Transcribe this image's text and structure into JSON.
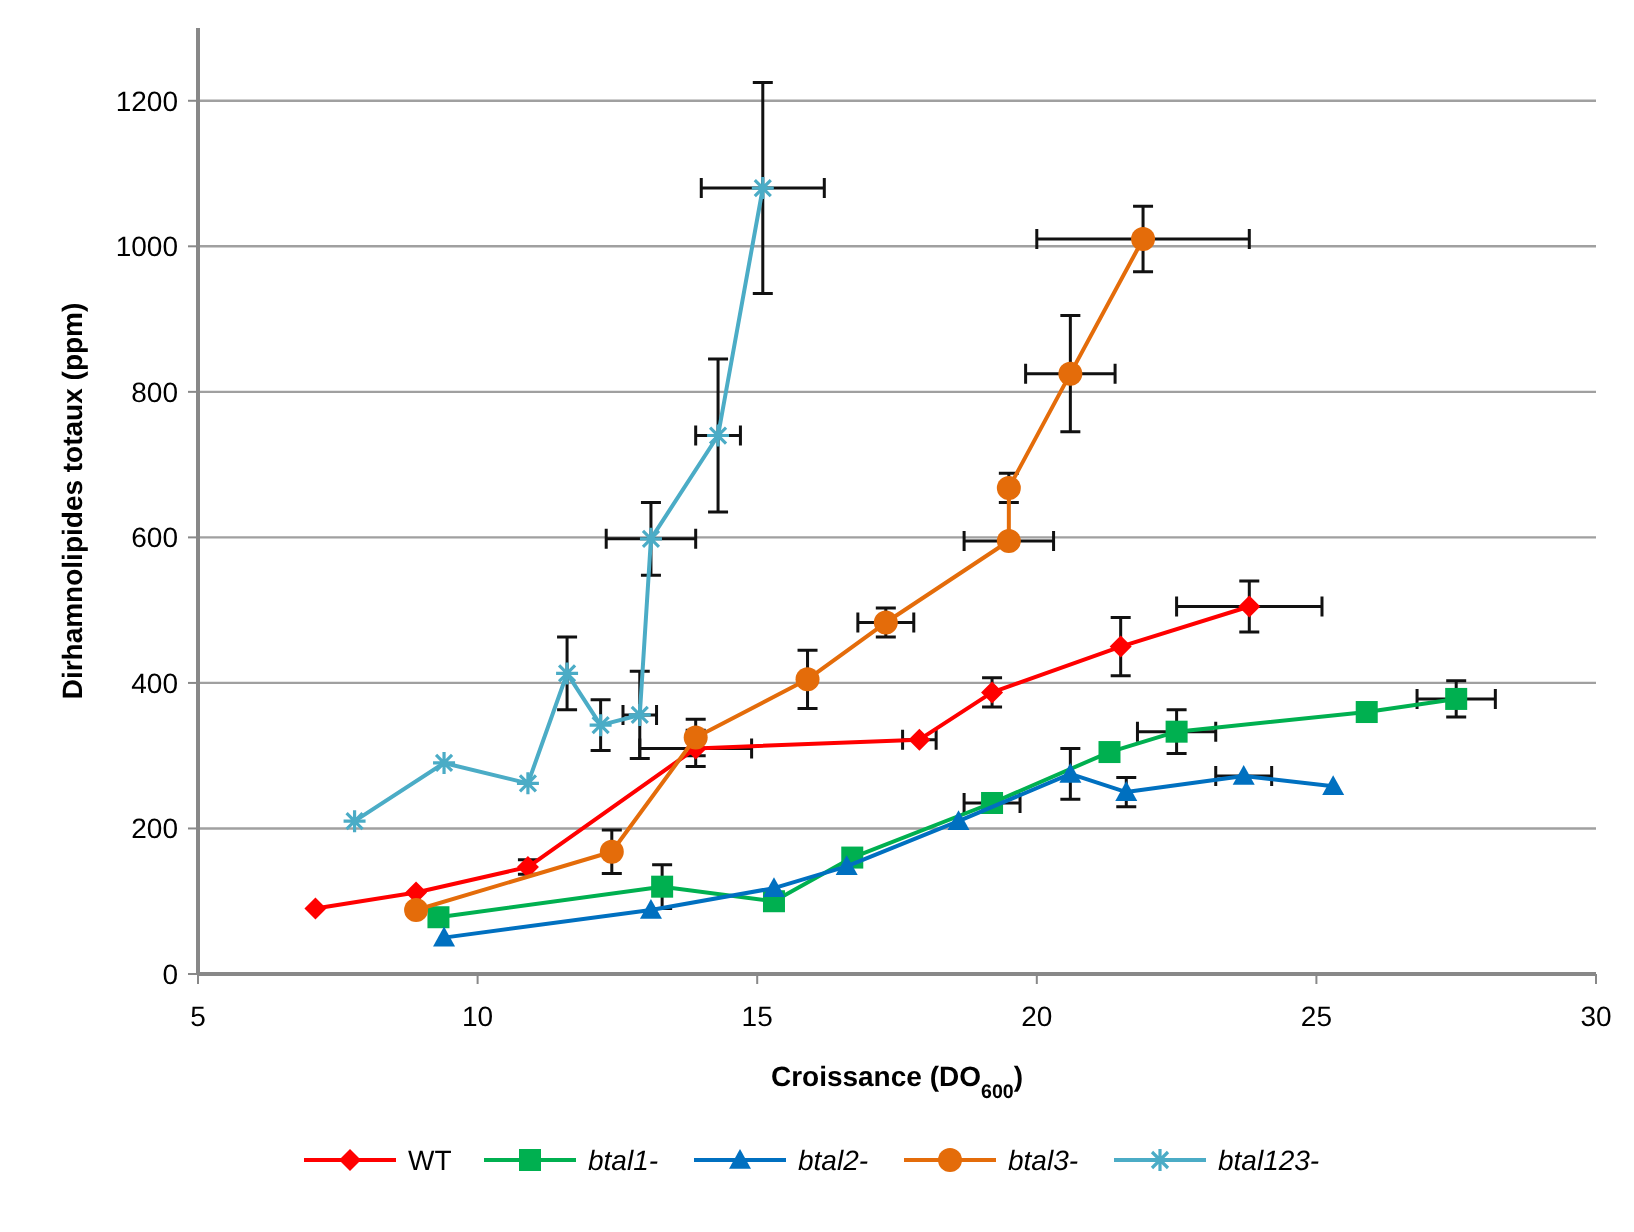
{
  "chart_data": {
    "type": "line",
    "xlabel": "Croissance (DO$_{600}$)",
    "ylabel": "Dirhamnolipides totaux (ppm)",
    "xlim": [
      5,
      30
    ],
    "xticks": [
      5,
      10,
      15,
      20,
      25,
      30
    ],
    "ylim": [
      0,
      1300
    ],
    "yticks": [
      0,
      200,
      400,
      600,
      800,
      1000,
      1200
    ],
    "grid": "y",
    "legend": "bottom",
    "series": [
      {
        "name": "WT",
        "color": "#ff0000",
        "marker": "diamond",
        "x": [
          7.1,
          8.9,
          10.9,
          13.9,
          17.9,
          19.2,
          21.5,
          23.8
        ],
        "values": [
          90,
          112,
          147,
          310,
          322,
          387,
          450,
          505
        ],
        "errors": [
          null,
          null,
          10,
          25,
          null,
          20,
          40,
          35
        ],
        "xerrors": [
          null,
          null,
          null,
          1,
          0.3,
          null,
          null,
          1.3
        ]
      },
      {
        "name": "btal1-",
        "color": "#00b050",
        "marker": "square",
        "x": [
          9.3,
          13.3,
          15.3,
          16.7,
          19.2,
          21.3,
          22.5,
          25.9,
          27.5
        ],
        "values": [
          78,
          120,
          100,
          160,
          235,
          305,
          333,
          360,
          378
        ],
        "errors": [
          null,
          30,
          null,
          null,
          null,
          null,
          30,
          null,
          25
        ],
        "xerrors": [
          null,
          null,
          null,
          null,
          0.5,
          null,
          0.7,
          null,
          0.7
        ]
      },
      {
        "name": "btal2-",
        "color": "#0070c0",
        "marker": "triangle",
        "x": [
          9.4,
          13.1,
          15.3,
          16.6,
          18.6,
          20.6,
          21.6,
          23.7,
          25.3
        ],
        "values": [
          50,
          88,
          118,
          148,
          210,
          275,
          250,
          272,
          258
        ],
        "errors": [
          null,
          null,
          null,
          null,
          null,
          35,
          20,
          null,
          null
        ],
        "xerrors": [
          null,
          null,
          null,
          null,
          null,
          null,
          null,
          0.5,
          null
        ]
      },
      {
        "name": "btal3-",
        "color": "#e46c0a",
        "marker": "circle",
        "x": [
          8.9,
          12.4,
          13.9,
          15.9,
          17.3,
          19.5,
          19.5,
          20.6,
          21.9
        ],
        "values": [
          88,
          168,
          325,
          405,
          483,
          595,
          668,
          825,
          1010
        ],
        "errors": [
          null,
          30,
          25,
          40,
          20,
          null,
          20,
          80,
          45
        ],
        "xerrors": [
          null,
          null,
          null,
          null,
          0.5,
          0.8,
          null,
          0.8,
          1.9
        ]
      },
      {
        "name": "btal123-",
        "color": "#4bacc6",
        "marker": "cross",
        "x": [
          7.8,
          9.4,
          10.9,
          11.6,
          12.2,
          12.9,
          13.1,
          14.3,
          15.1
        ],
        "values": [
          210,
          290,
          262,
          413,
          342,
          356,
          598,
          740,
          1080
        ],
        "errors": [
          null,
          null,
          null,
          50,
          35,
          60,
          50,
          105,
          145
        ],
        "xerrors": [
          null,
          null,
          null,
          null,
          null,
          0.3,
          0.8,
          0.4,
          1.1
        ]
      }
    ]
  }
}
